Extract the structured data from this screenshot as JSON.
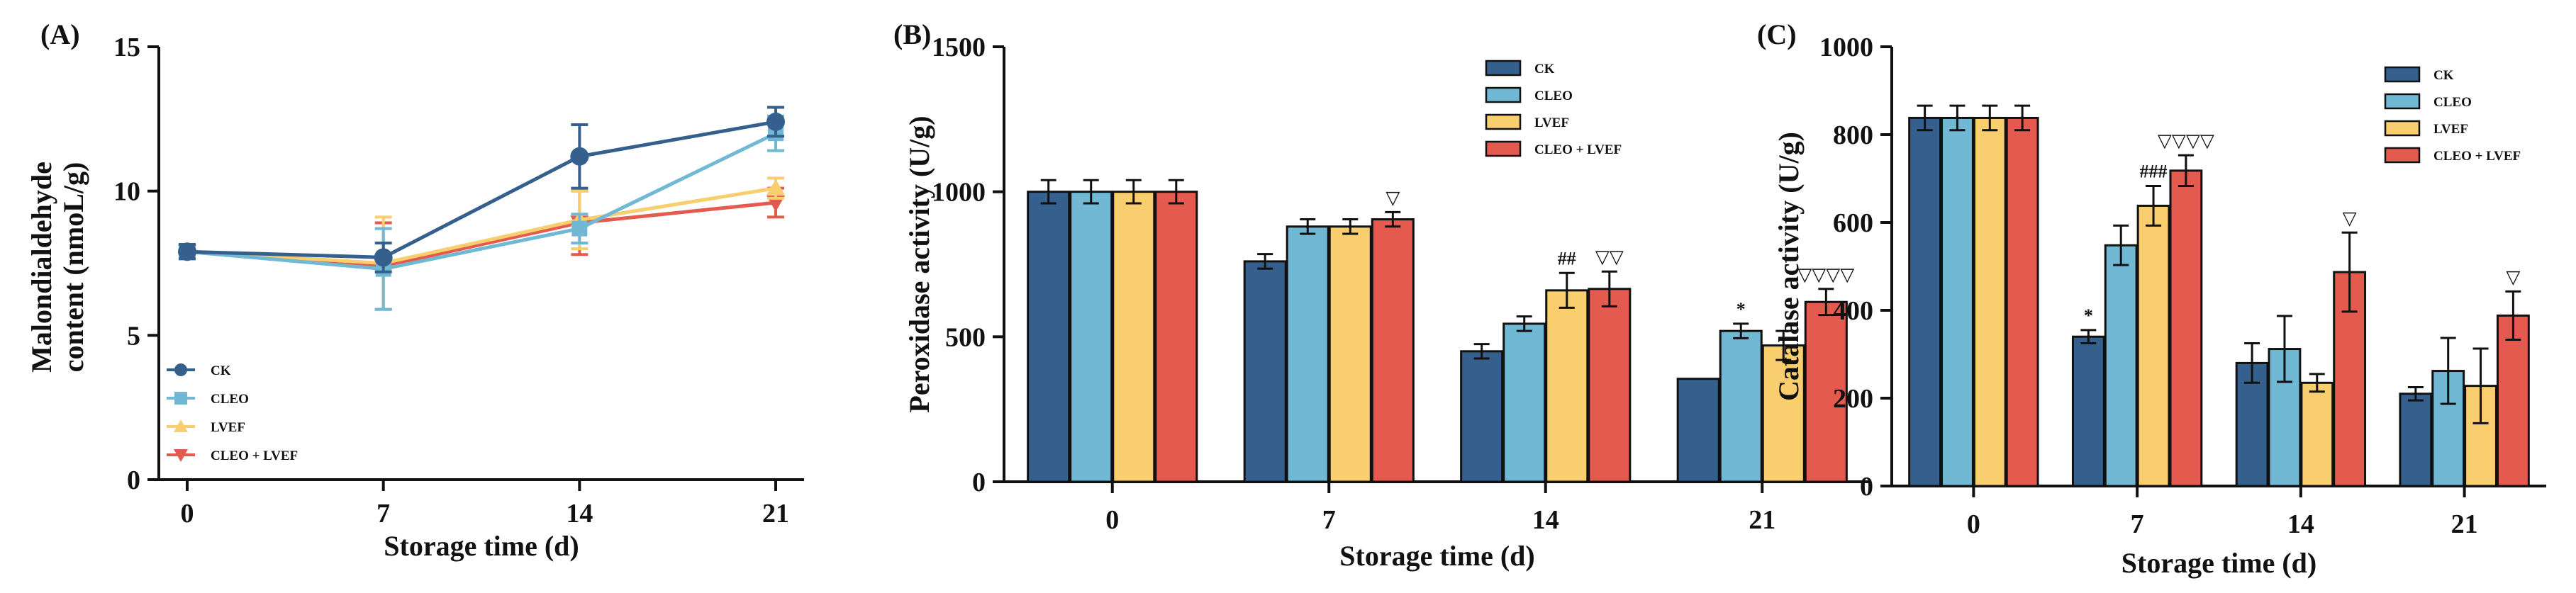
{
  "colors": {
    "CK": "#35608E",
    "CLEO": "#70B8D3",
    "LVEF": "#F8CE6E",
    "CLEO + LVEF": "#E45A4E",
    "axis": "#111111"
  },
  "chart_data": [
    {
      "type": "line",
      "panel_label": "(A)",
      "xlabel": "Storage time (d)",
      "ylabel_lines": [
        "Malondialdehyde",
        "content (nmoL/g)"
      ],
      "x": [
        0,
        7,
        14,
        21
      ],
      "x_tick_labels": [
        "0",
        "7",
        "14",
        "21"
      ],
      "ylim": [
        0,
        15
      ],
      "y_ticks": [
        0,
        5,
        10,
        15
      ],
      "legend_position": "bottom-left",
      "series": [
        {
          "name": "CK",
          "marker": "circle",
          "values": [
            7.9,
            7.7,
            11.2,
            12.4
          ],
          "errors": [
            0.25,
            0.5,
            1.1,
            0.5
          ]
        },
        {
          "name": "CLEO",
          "marker": "square",
          "values": [
            7.9,
            7.3,
            8.7,
            12.0
          ],
          "errors": [
            0.2,
            1.4,
            0.5,
            0.6
          ]
        },
        {
          "name": "LVEF",
          "marker": "triangle-up",
          "values": [
            7.9,
            7.5,
            9.0,
            10.1
          ],
          "errors": [
            0.2,
            1.6,
            1.0,
            0.35
          ]
        },
        {
          "name": "CLEO + LVEF",
          "marker": "triangle-down",
          "values": [
            7.9,
            7.4,
            8.9,
            9.6
          ],
          "errors": [
            0.2,
            1.5,
            1.1,
            0.5
          ]
        }
      ]
    },
    {
      "type": "bar",
      "panel_label": "(B)",
      "xlabel": "Storage time (d)",
      "ylabel": "Peroxidase activity (U/g)",
      "categories": [
        "0",
        "7",
        "14",
        "21"
      ],
      "ylim": [
        0,
        1500
      ],
      "y_ticks": [
        0,
        500,
        1000,
        1500
      ],
      "legend_position": "top-right",
      "series": [
        {
          "name": "CK",
          "values": [
            1000,
            760,
            450,
            355
          ],
          "errors": [
            40,
            25,
            25,
            0
          ]
        },
        {
          "name": "CLEO",
          "values": [
            1000,
            880,
            545,
            520
          ],
          "errors": [
            40,
            25,
            25,
            25
          ]
        },
        {
          "name": "LVEF",
          "values": [
            1000,
            880,
            660,
            470
          ],
          "errors": [
            40,
            25,
            60,
            50
          ]
        },
        {
          "name": "CLEO + LVEF",
          "values": [
            1000,
            905,
            665,
            620
          ],
          "errors": [
            40,
            25,
            60,
            45
          ]
        }
      ],
      "annotations": [
        {
          "category": 1,
          "series": 3,
          "text": "▽"
        },
        {
          "category": 2,
          "series": 2,
          "text": "##"
        },
        {
          "category": 2,
          "series": 3,
          "text": "▽▽"
        },
        {
          "category": 3,
          "series": 1,
          "text": "*"
        },
        {
          "category": 3,
          "series": 3,
          "text": "▽▽▽▽"
        }
      ]
    },
    {
      "type": "bar",
      "panel_label": "(C)",
      "xlabel": "Storage time (d)",
      "ylabel": "Catalase activity (U/g)",
      "categories": [
        "0",
        "7",
        "14",
        "21"
      ],
      "ylim": [
        0,
        1000
      ],
      "y_ticks": [
        0,
        200,
        400,
        600,
        800,
        1000
      ],
      "legend_position": "top-right",
      "series": [
        {
          "name": "CK",
          "values": [
            838,
            340,
            280,
            210
          ],
          "errors": [
            28,
            15,
            45,
            15
          ]
        },
        {
          "name": "CLEO",
          "values": [
            838,
            548,
            312,
            262
          ],
          "errors": [
            28,
            45,
            75,
            75
          ]
        },
        {
          "name": "LVEF",
          "values": [
            838,
            638,
            235,
            228
          ],
          "errors": [
            28,
            45,
            20,
            85
          ]
        },
        {
          "name": "CLEO + LVEF",
          "values": [
            838,
            718,
            487,
            388
          ],
          "errors": [
            28,
            35,
            90,
            55
          ]
        }
      ],
      "annotations": [
        {
          "category": 1,
          "series": 0,
          "text": "*"
        },
        {
          "category": 1,
          "series": 2,
          "text": "###"
        },
        {
          "category": 1,
          "series": 3,
          "text": "▽▽▽▽"
        },
        {
          "category": 2,
          "series": 3,
          "text": "▽"
        },
        {
          "category": 3,
          "series": 3,
          "text": "▽"
        }
      ]
    }
  ]
}
